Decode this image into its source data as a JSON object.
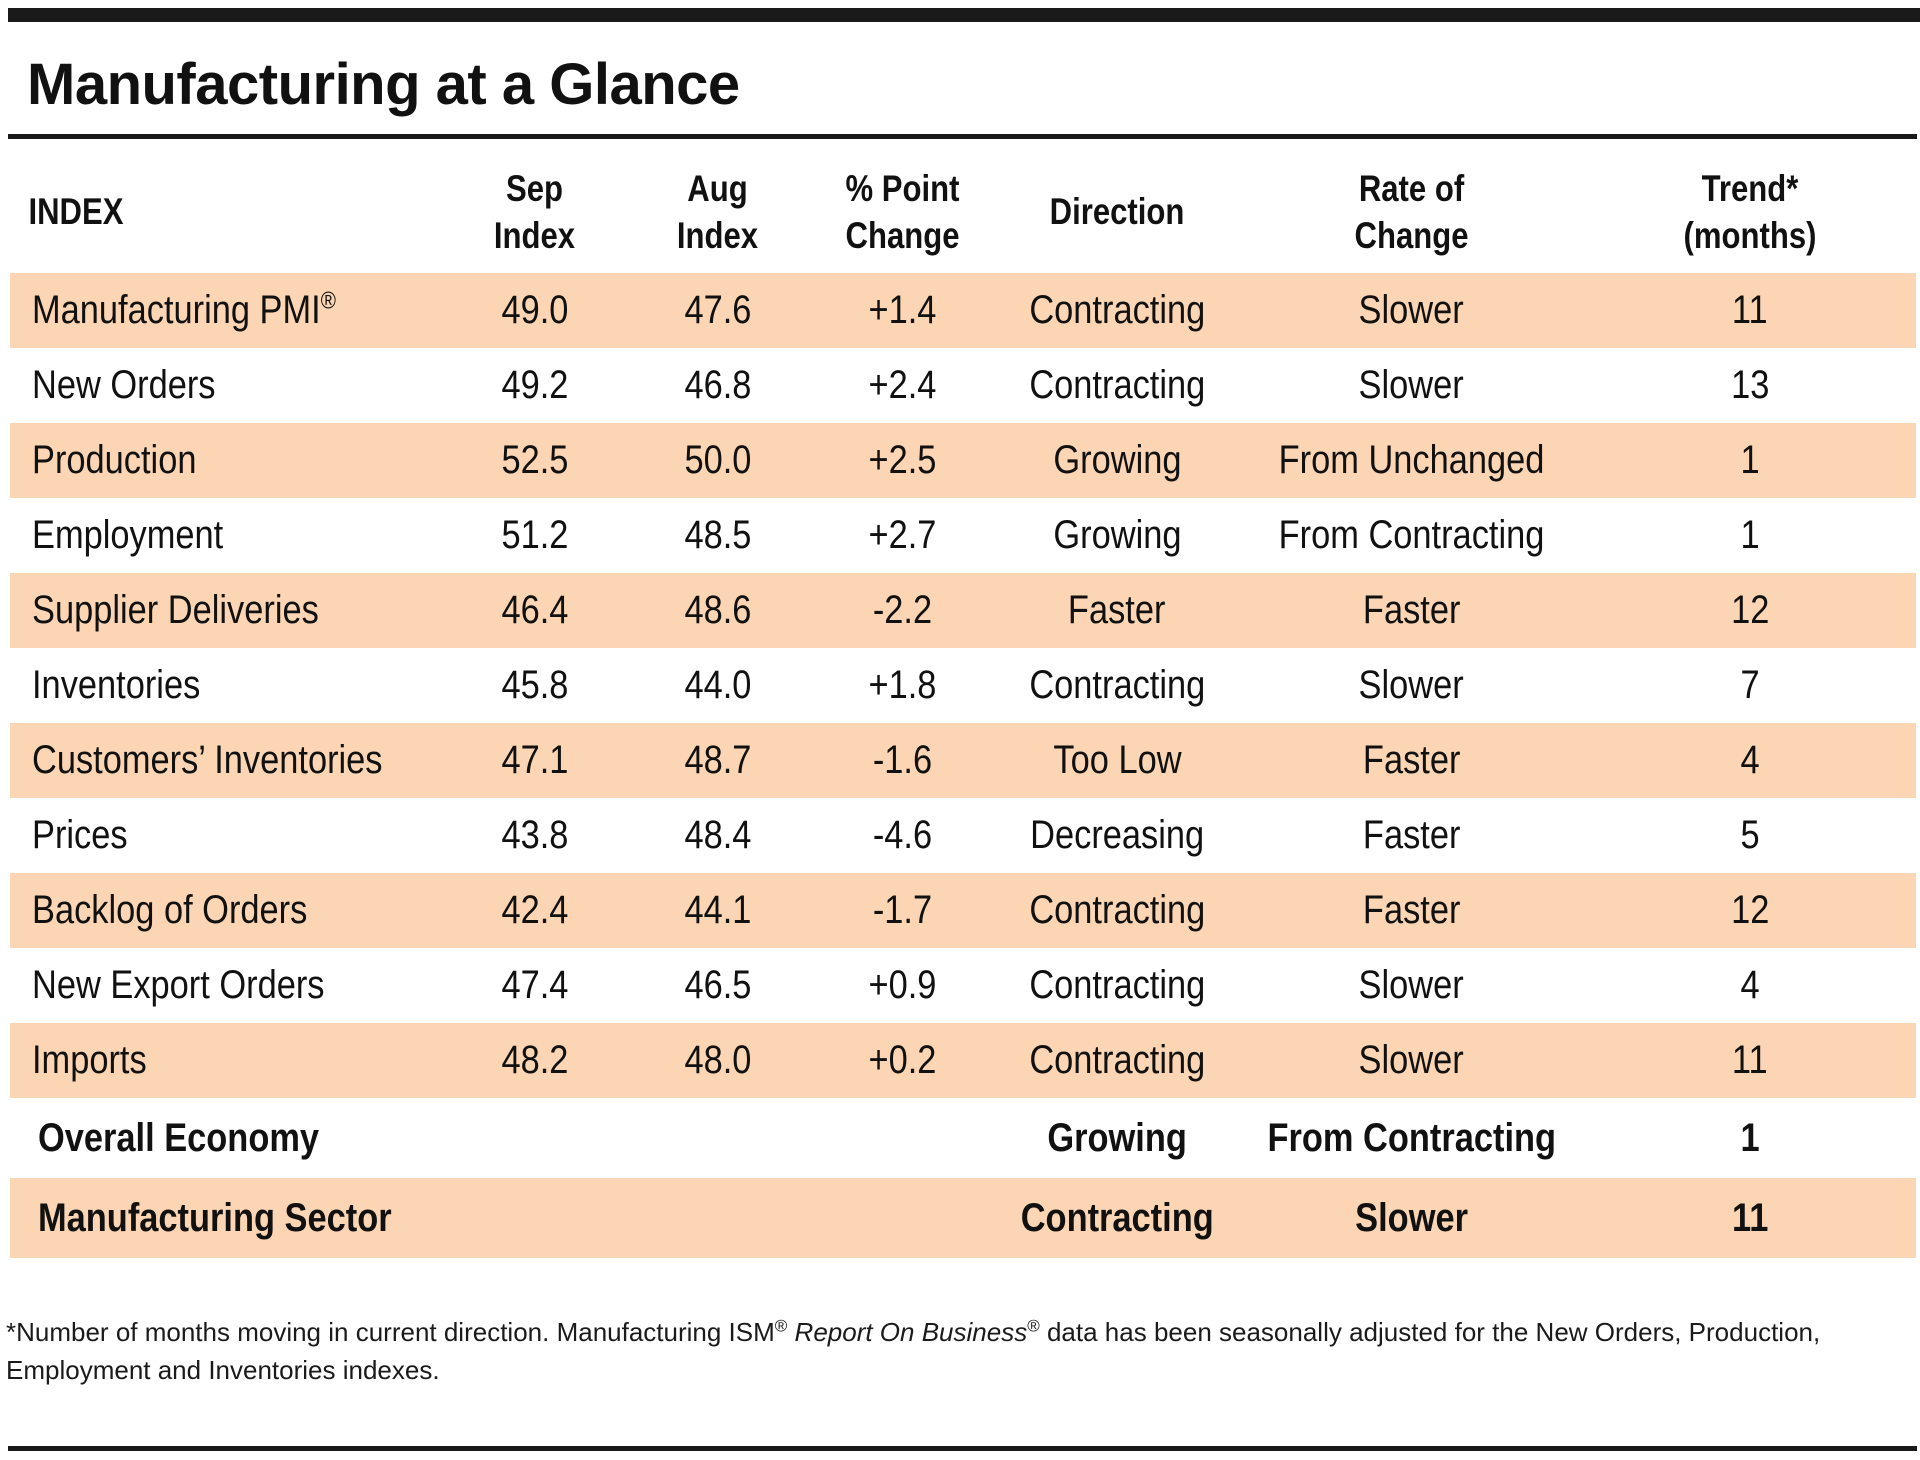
{
  "title": "Manufacturing at a Glance",
  "headers": {
    "index": "INDEX",
    "sep_line1": "Sep",
    "sep_line2": "Index",
    "aug_line1": "Aug",
    "aug_line2": "Index",
    "change_line1": "% Point",
    "change_line2": "Change",
    "direction": "Direction",
    "rate_line1": "Rate of",
    "rate_line2": "Change",
    "trend_line1": "Trend*",
    "trend_line2": "(months)"
  },
  "rows": [
    {
      "name": "Manufacturing PMI",
      "reg": "®",
      "sep": "49.0",
      "aug": "47.6",
      "change": "+1.4",
      "direction": "Contracting",
      "rate": "Slower",
      "trend": "11"
    },
    {
      "name": "New Orders",
      "sep": "49.2",
      "aug": "46.8",
      "change": "+2.4",
      "direction": "Contracting",
      "rate": "Slower",
      "trend": "13"
    },
    {
      "name": "Production",
      "sep": "52.5",
      "aug": "50.0",
      "change": "+2.5",
      "direction": "Growing",
      "rate": "From Unchanged",
      "trend": "1"
    },
    {
      "name": "Employment",
      "sep": "51.2",
      "aug": "48.5",
      "change": "+2.7",
      "direction": "Growing",
      "rate": "From Contracting",
      "trend": "1"
    },
    {
      "name": "Supplier Deliveries",
      "sep": "46.4",
      "aug": "48.6",
      "change": "-2.2",
      "direction": "Faster",
      "rate": "Faster",
      "trend": "12"
    },
    {
      "name": "Inventories",
      "sep": "45.8",
      "aug": "44.0",
      "change": "+1.8",
      "direction": "Contracting",
      "rate": "Slower",
      "trend": "7"
    },
    {
      "name": "Customers’ Inventories",
      "sep": "47.1",
      "aug": "48.7",
      "change": "-1.6",
      "direction": "Too Low",
      "rate": "Faster",
      "trend": "4"
    },
    {
      "name": "Prices",
      "sep": "43.8",
      "aug": "48.4",
      "change": "-4.6",
      "direction": "Decreasing",
      "rate": "Faster",
      "trend": "5"
    },
    {
      "name": "Backlog of Orders",
      "sep": "42.4",
      "aug": "44.1",
      "change": "-1.7",
      "direction": "Contracting",
      "rate": "Faster",
      "trend": "12"
    },
    {
      "name": "New Export Orders",
      "sep": "47.4",
      "aug": "46.5",
      "change": "+0.9",
      "direction": "Contracting",
      "rate": "Slower",
      "trend": "4"
    },
    {
      "name": "Imports",
      "sep": "48.2",
      "aug": "48.0",
      "change": "+0.2",
      "direction": "Contracting",
      "rate": "Slower",
      "trend": "11"
    }
  ],
  "summary": [
    {
      "name": "Overall Economy",
      "direction": "Growing",
      "rate": "From Contracting",
      "trend": "1"
    },
    {
      "name": "Manufacturing Sector",
      "direction": "Contracting",
      "rate": "Slower",
      "trend": "11"
    }
  ],
  "footnote": {
    "part1": "*Number of months moving in current direction. Manufacturing ISM",
    "reg1": "®",
    "report_name": "Report On Business",
    "reg2": "®",
    "part2": " data has been seasonally adjusted for the New Orders, Production, Employment and Inventories indexes."
  },
  "colors": {
    "row_shade": "#fcd5b4",
    "rule": "#1a1a1a",
    "text": "#111111"
  }
}
